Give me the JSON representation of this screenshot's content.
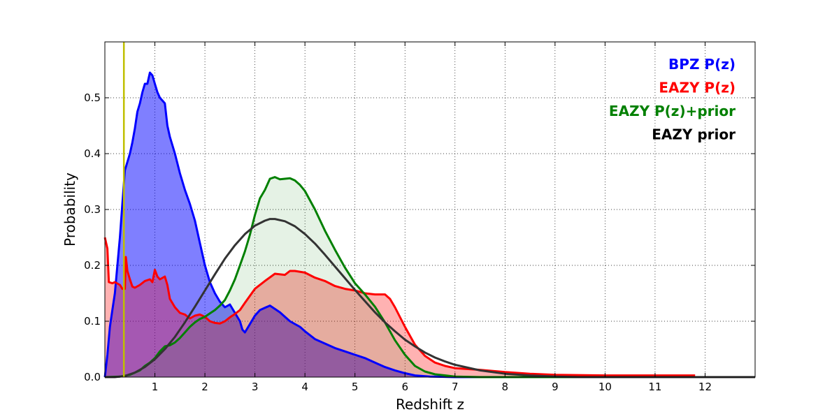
{
  "chart_data": {
    "type": "area",
    "xlabel": "Redshift z",
    "ylabel": "Probability",
    "xlim": [
      0,
      13
    ],
    "ylim": [
      0,
      0.6
    ],
    "x_ticks": [
      1,
      2,
      3,
      4,
      5,
      6,
      7,
      8,
      9,
      10,
      11,
      12
    ],
    "y_ticks": [
      0.0,
      0.1,
      0.2,
      0.3,
      0.4,
      0.5
    ],
    "grid": true,
    "legend_position": "top-right",
    "vertical_line": {
      "x": 0.38,
      "color": "#bfbf00"
    },
    "series": [
      {
        "name": "BPZ P(z)",
        "color": "#0000ff",
        "fill": "rgba(0,0,255,0.5)",
        "points": [
          [
            0,
            0
          ],
          [
            0.05,
            0.04
          ],
          [
            0.1,
            0.09
          ],
          [
            0.15,
            0.12
          ],
          [
            0.2,
            0.15
          ],
          [
            0.25,
            0.2
          ],
          [
            0.3,
            0.25
          ],
          [
            0.35,
            0.31
          ],
          [
            0.4,
            0.37
          ],
          [
            0.45,
            0.385
          ],
          [
            0.5,
            0.4
          ],
          [
            0.55,
            0.42
          ],
          [
            0.6,
            0.445
          ],
          [
            0.65,
            0.475
          ],
          [
            0.7,
            0.49
          ],
          [
            0.75,
            0.51
          ],
          [
            0.8,
            0.525
          ],
          [
            0.85,
            0.525
          ],
          [
            0.9,
            0.545
          ],
          [
            0.95,
            0.54
          ],
          [
            1.0,
            0.525
          ],
          [
            1.05,
            0.51
          ],
          [
            1.1,
            0.5
          ],
          [
            1.15,
            0.495
          ],
          [
            1.2,
            0.49
          ],
          [
            1.25,
            0.45
          ],
          [
            1.3,
            0.43
          ],
          [
            1.35,
            0.415
          ],
          [
            1.4,
            0.4
          ],
          [
            1.5,
            0.365
          ],
          [
            1.6,
            0.335
          ],
          [
            1.7,
            0.31
          ],
          [
            1.8,
            0.28
          ],
          [
            1.9,
            0.24
          ],
          [
            2.0,
            0.2
          ],
          [
            2.1,
            0.17
          ],
          [
            2.2,
            0.15
          ],
          [
            2.3,
            0.135
          ],
          [
            2.4,
            0.125
          ],
          [
            2.5,
            0.13
          ],
          [
            2.6,
            0.115
          ],
          [
            2.7,
            0.1
          ],
          [
            2.75,
            0.085
          ],
          [
            2.8,
            0.08
          ],
          [
            2.9,
            0.095
          ],
          [
            3.0,
            0.11
          ],
          [
            3.1,
            0.12
          ],
          [
            3.2,
            0.124
          ],
          [
            3.3,
            0.128
          ],
          [
            3.4,
            0.122
          ],
          [
            3.5,
            0.116
          ],
          [
            3.6,
            0.108
          ],
          [
            3.7,
            0.1
          ],
          [
            3.8,
            0.095
          ],
          [
            3.9,
            0.09
          ],
          [
            4.0,
            0.082
          ],
          [
            4.2,
            0.068
          ],
          [
            4.4,
            0.06
          ],
          [
            4.6,
            0.052
          ],
          [
            4.8,
            0.046
          ],
          [
            5.0,
            0.04
          ],
          [
            5.2,
            0.034
          ],
          [
            5.4,
            0.026
          ],
          [
            5.6,
            0.018
          ],
          [
            5.8,
            0.012
          ],
          [
            6.0,
            0.007
          ],
          [
            6.2,
            0.003
          ],
          [
            6.5,
            0.001
          ],
          [
            7.0,
            0
          ],
          [
            13,
            0
          ]
        ]
      },
      {
        "name": "EAZY P(z)",
        "color": "#ff0000",
        "fill": "rgba(255,0,0,0.3)",
        "points": [
          [
            0,
            0.25
          ],
          [
            0.05,
            0.23
          ],
          [
            0.08,
            0.17
          ],
          [
            0.15,
            0.168
          ],
          [
            0.2,
            0.17
          ],
          [
            0.3,
            0.165
          ],
          [
            0.35,
            0.158
          ],
          [
            0.4,
            0.158
          ],
          [
            0.42,
            0.215
          ],
          [
            0.45,
            0.19
          ],
          [
            0.5,
            0.175
          ],
          [
            0.55,
            0.162
          ],
          [
            0.6,
            0.16
          ],
          [
            0.7,
            0.165
          ],
          [
            0.8,
            0.172
          ],
          [
            0.9,
            0.175
          ],
          [
            0.95,
            0.17
          ],
          [
            1.0,
            0.192
          ],
          [
            1.05,
            0.18
          ],
          [
            1.1,
            0.175
          ],
          [
            1.2,
            0.18
          ],
          [
            1.25,
            0.165
          ],
          [
            1.3,
            0.14
          ],
          [
            1.4,
            0.125
          ],
          [
            1.5,
            0.115
          ],
          [
            1.6,
            0.112
          ],
          [
            1.7,
            0.105
          ],
          [
            1.8,
            0.11
          ],
          [
            1.9,
            0.112
          ],
          [
            2.0,
            0.108
          ],
          [
            2.1,
            0.1
          ],
          [
            2.2,
            0.097
          ],
          [
            2.3,
            0.096
          ],
          [
            2.4,
            0.1
          ],
          [
            2.5,
            0.107
          ],
          [
            2.6,
            0.113
          ],
          [
            2.7,
            0.12
          ],
          [
            2.8,
            0.133
          ],
          [
            3.0,
            0.158
          ],
          [
            3.2,
            0.172
          ],
          [
            3.4,
            0.185
          ],
          [
            3.6,
            0.183
          ],
          [
            3.7,
            0.19
          ],
          [
            3.8,
            0.19
          ],
          [
            4.0,
            0.187
          ],
          [
            4.2,
            0.178
          ],
          [
            4.4,
            0.172
          ],
          [
            4.6,
            0.163
          ],
          [
            4.8,
            0.158
          ],
          [
            5.0,
            0.155
          ],
          [
            5.2,
            0.15
          ],
          [
            5.4,
            0.148
          ],
          [
            5.6,
            0.148
          ],
          [
            5.7,
            0.14
          ],
          [
            5.8,
            0.125
          ],
          [
            6.0,
            0.09
          ],
          [
            6.2,
            0.058
          ],
          [
            6.4,
            0.038
          ],
          [
            6.6,
            0.026
          ],
          [
            6.8,
            0.02
          ],
          [
            7.0,
            0.016
          ],
          [
            7.5,
            0.013
          ],
          [
            8.0,
            0.009
          ],
          [
            8.5,
            0.006
          ],
          [
            9.0,
            0.004
          ],
          [
            10.0,
            0.003
          ],
          [
            11.0,
            0.003
          ],
          [
            11.8,
            0.003
          ]
        ]
      },
      {
        "name": "EAZY P(z)+prior",
        "color": "#008000",
        "fill": "rgba(0,128,0,0.1)",
        "points": [
          [
            0,
            0
          ],
          [
            0.3,
            0.001
          ],
          [
            0.5,
            0.004
          ],
          [
            0.7,
            0.012
          ],
          [
            0.8,
            0.02
          ],
          [
            0.9,
            0.026
          ],
          [
            1.0,
            0.034
          ],
          [
            1.1,
            0.046
          ],
          [
            1.2,
            0.055
          ],
          [
            1.3,
            0.057
          ],
          [
            1.4,
            0.062
          ],
          [
            1.5,
            0.07
          ],
          [
            1.6,
            0.08
          ],
          [
            1.7,
            0.09
          ],
          [
            1.8,
            0.098
          ],
          [
            1.9,
            0.104
          ],
          [
            2.0,
            0.108
          ],
          [
            2.1,
            0.114
          ],
          [
            2.2,
            0.12
          ],
          [
            2.3,
            0.128
          ],
          [
            2.4,
            0.138
          ],
          [
            2.5,
            0.155
          ],
          [
            2.6,
            0.175
          ],
          [
            2.7,
            0.2
          ],
          [
            2.8,
            0.225
          ],
          [
            2.9,
            0.255
          ],
          [
            3.0,
            0.29
          ],
          [
            3.1,
            0.32
          ],
          [
            3.2,
            0.335
          ],
          [
            3.3,
            0.355
          ],
          [
            3.4,
            0.358
          ],
          [
            3.5,
            0.354
          ],
          [
            3.6,
            0.355
          ],
          [
            3.7,
            0.356
          ],
          [
            3.8,
            0.352
          ],
          [
            3.9,
            0.344
          ],
          [
            4.0,
            0.333
          ],
          [
            4.2,
            0.3
          ],
          [
            4.4,
            0.262
          ],
          [
            4.6,
            0.228
          ],
          [
            4.8,
            0.196
          ],
          [
            5.0,
            0.168
          ],
          [
            5.2,
            0.148
          ],
          [
            5.4,
            0.126
          ],
          [
            5.6,
            0.098
          ],
          [
            5.8,
            0.066
          ],
          [
            6.0,
            0.04
          ],
          [
            6.2,
            0.02
          ],
          [
            6.4,
            0.01
          ],
          [
            6.6,
            0.005
          ],
          [
            7.0,
            0.001
          ],
          [
            7.5,
            0
          ],
          [
            13,
            0
          ]
        ]
      },
      {
        "name": "EAZY prior",
        "color": "#333333",
        "fill": "none",
        "points": [
          [
            0,
            0
          ],
          [
            0.2,
            0
          ],
          [
            0.4,
            0.002
          ],
          [
            0.6,
            0.008
          ],
          [
            0.8,
            0.018
          ],
          [
            1.0,
            0.032
          ],
          [
            1.2,
            0.05
          ],
          [
            1.4,
            0.072
          ],
          [
            1.6,
            0.098
          ],
          [
            1.8,
            0.126
          ],
          [
            2.0,
            0.155
          ],
          [
            2.2,
            0.184
          ],
          [
            2.4,
            0.212
          ],
          [
            2.6,
            0.236
          ],
          [
            2.8,
            0.256
          ],
          [
            3.0,
            0.271
          ],
          [
            3.2,
            0.28
          ],
          [
            3.3,
            0.283
          ],
          [
            3.4,
            0.283
          ],
          [
            3.6,
            0.279
          ],
          [
            3.8,
            0.27
          ],
          [
            4.0,
            0.256
          ],
          [
            4.2,
            0.239
          ],
          [
            4.4,
            0.219
          ],
          [
            4.6,
            0.198
          ],
          [
            4.8,
            0.177
          ],
          [
            5.0,
            0.156
          ],
          [
            5.2,
            0.136
          ],
          [
            5.4,
            0.116
          ],
          [
            5.6,
            0.098
          ],
          [
            5.8,
            0.082
          ],
          [
            6.0,
            0.067
          ],
          [
            6.2,
            0.055
          ],
          [
            6.4,
            0.044
          ],
          [
            6.6,
            0.035
          ],
          [
            6.8,
            0.028
          ],
          [
            7.0,
            0.022
          ],
          [
            7.5,
            0.012
          ],
          [
            8.0,
            0.006
          ],
          [
            8.5,
            0.003
          ],
          [
            9.0,
            0.001
          ],
          [
            9.5,
            0
          ],
          [
            13,
            0
          ]
        ]
      }
    ]
  }
}
